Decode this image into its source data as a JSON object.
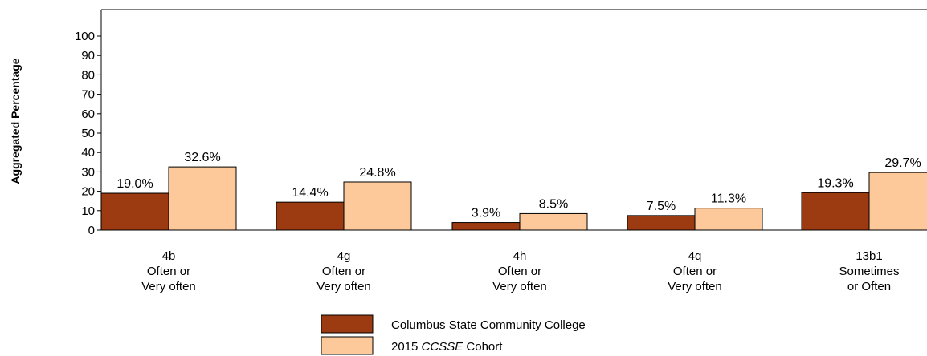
{
  "chart_data": {
    "type": "bar",
    "ylabel": "Aggregated Percentage",
    "ylim": [
      0,
      100
    ],
    "yticks": [
      0,
      10,
      20,
      30,
      40,
      50,
      60,
      70,
      80,
      90,
      100
    ],
    "categories": [
      [
        "4b",
        "Often or",
        "Very often"
      ],
      [
        "4g",
        "Often or",
        "Very often"
      ],
      [
        "4h",
        "Often or",
        "Very often"
      ],
      [
        "4q",
        "Often or",
        "Very often"
      ],
      [
        "13b1",
        "Sometimes",
        "or Often"
      ]
    ],
    "series": [
      {
        "name": "Columbus State Community College",
        "color": "#9c3a12",
        "values": [
          19.0,
          14.4,
          3.9,
          7.5,
          19.3
        ],
        "labels": [
          "19.0%",
          "14.4%",
          "3.9%",
          "7.5%",
          "19.3%"
        ]
      },
      {
        "name_parts": [
          "2015 ",
          "CCSSE",
          " Cohort"
        ],
        "color": "#fdc99a",
        "values": [
          32.6,
          24.8,
          8.5,
          11.3,
          29.7
        ],
        "labels": [
          "32.6%",
          "24.8%",
          "8.5%",
          "11.3%",
          "29.7%"
        ]
      }
    ],
    "grid": false,
    "legend_position": "bottom-center"
  }
}
